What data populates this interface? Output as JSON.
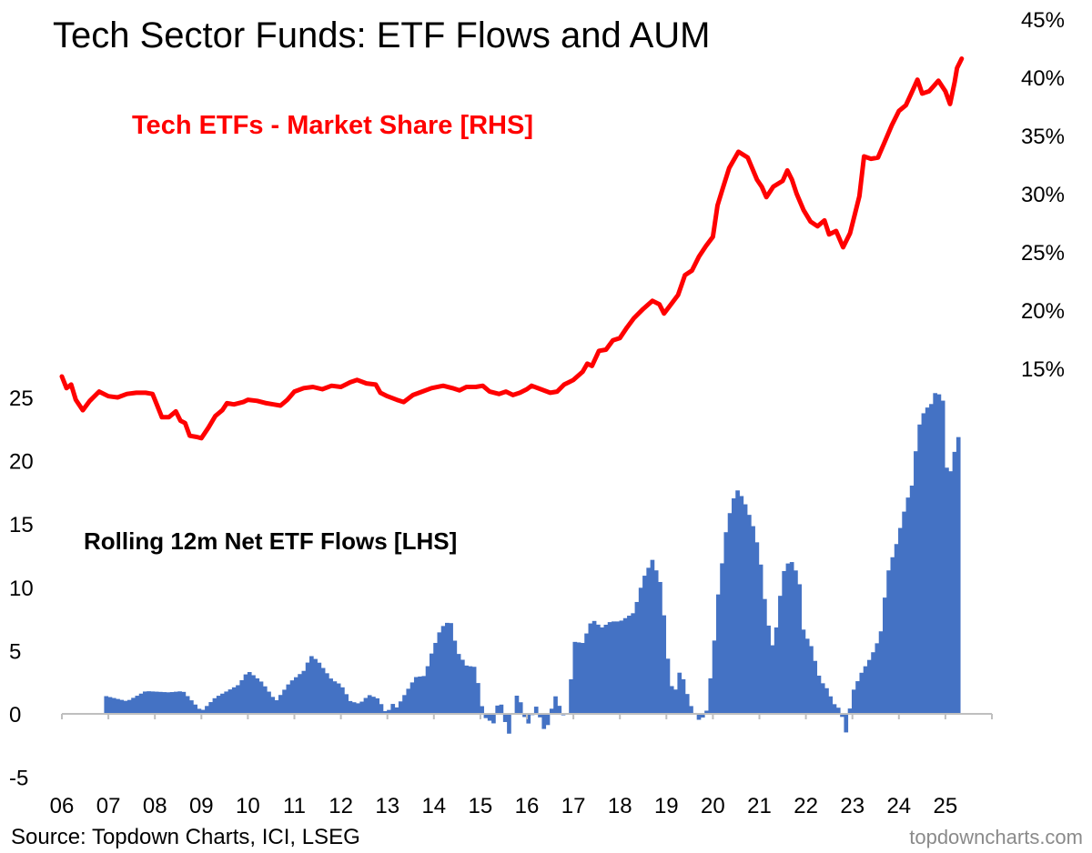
{
  "title": "Tech Sector Funds: ETF Flows and AUM",
  "source": "Source: Topdown Charts, ICI, LSEG",
  "brand": "topdowncharts.com",
  "chart_data": {
    "type": "bar+line",
    "x_tick_labels": [
      "06",
      "07",
      "08",
      "09",
      "10",
      "11",
      "12",
      "13",
      "14",
      "15",
      "16",
      "17",
      "18",
      "19",
      "20",
      "21",
      "22",
      "23",
      "24",
      "25"
    ],
    "left_axis": {
      "ticks": [
        "25",
        "20",
        "15",
        "10",
        "5",
        "0",
        "-5"
      ],
      "range": [
        -5,
        27
      ]
    },
    "right_axis": {
      "ticks": [
        "45%",
        "40%",
        "35%",
        "30%",
        "25%",
        "20%",
        "15%"
      ],
      "range_pct": [
        10,
        45
      ]
    },
    "grid": false,
    "series": [
      {
        "name": "Tech ETFs - Market Share [RHS]",
        "type": "line",
        "axis": "right",
        "color": "#ff0000",
        "points": [
          [
            2006.0,
            14.3
          ],
          [
            2006.1,
            13.3
          ],
          [
            2006.2,
            13.6
          ],
          [
            2006.3,
            12.3
          ],
          [
            2006.45,
            11.4
          ],
          [
            2006.6,
            12.2
          ],
          [
            2006.8,
            13.0
          ],
          [
            2007.0,
            12.6
          ],
          [
            2007.2,
            12.5
          ],
          [
            2007.4,
            12.8
          ],
          [
            2007.6,
            12.9
          ],
          [
            2007.8,
            12.9
          ],
          [
            2007.95,
            12.8
          ],
          [
            2008.05,
            11.8
          ],
          [
            2008.15,
            10.8
          ],
          [
            2008.3,
            10.8
          ],
          [
            2008.45,
            11.3
          ],
          [
            2008.55,
            10.5
          ],
          [
            2008.65,
            10.3
          ],
          [
            2008.75,
            9.2
          ],
          [
            2008.9,
            9.1
          ],
          [
            2009.0,
            9.0
          ],
          [
            2009.15,
            9.9
          ],
          [
            2009.3,
            10.9
          ],
          [
            2009.45,
            11.4
          ],
          [
            2009.55,
            12.0
          ],
          [
            2009.7,
            11.9
          ],
          [
            2009.9,
            12.1
          ],
          [
            2010.0,
            12.3
          ],
          [
            2010.2,
            12.2
          ],
          [
            2010.4,
            12.0
          ],
          [
            2010.55,
            11.9
          ],
          [
            2010.7,
            11.8
          ],
          [
            2010.85,
            12.3
          ],
          [
            2011.0,
            13.0
          ],
          [
            2011.2,
            13.3
          ],
          [
            2011.4,
            13.4
          ],
          [
            2011.6,
            13.2
          ],
          [
            2011.8,
            13.5
          ],
          [
            2012.0,
            13.4
          ],
          [
            2012.2,
            13.8
          ],
          [
            2012.35,
            14.0
          ],
          [
            2012.55,
            13.7
          ],
          [
            2012.75,
            13.6
          ],
          [
            2012.85,
            12.9
          ],
          [
            2013.0,
            12.6
          ],
          [
            2013.2,
            12.3
          ],
          [
            2013.35,
            12.1
          ],
          [
            2013.55,
            12.7
          ],
          [
            2013.75,
            13.0
          ],
          [
            2013.95,
            13.3
          ],
          [
            2014.2,
            13.5
          ],
          [
            2014.4,
            13.3
          ],
          [
            2014.55,
            13.1
          ],
          [
            2014.7,
            13.4
          ],
          [
            2014.9,
            13.4
          ],
          [
            2015.05,
            13.5
          ],
          [
            2015.2,
            13.0
          ],
          [
            2015.4,
            12.8
          ],
          [
            2015.55,
            13.0
          ],
          [
            2015.7,
            12.7
          ],
          [
            2015.85,
            12.9
          ],
          [
            2016.0,
            13.2
          ],
          [
            2016.1,
            13.5
          ],
          [
            2016.3,
            13.2
          ],
          [
            2016.5,
            12.9
          ],
          [
            2016.65,
            13.0
          ],
          [
            2016.8,
            13.6
          ],
          [
            2016.9,
            13.8
          ],
          [
            2017.0,
            14.0
          ],
          [
            2017.2,
            14.7
          ],
          [
            2017.3,
            15.4
          ],
          [
            2017.4,
            15.2
          ],
          [
            2017.55,
            16.5
          ],
          [
            2017.7,
            16.6
          ],
          [
            2017.85,
            17.4
          ],
          [
            2018.0,
            17.6
          ],
          [
            2018.15,
            18.5
          ],
          [
            2018.3,
            19.3
          ],
          [
            2018.5,
            20.1
          ],
          [
            2018.7,
            20.8
          ],
          [
            2018.85,
            20.5
          ],
          [
            2018.95,
            19.7
          ],
          [
            2019.1,
            20.5
          ],
          [
            2019.25,
            21.3
          ],
          [
            2019.4,
            23.0
          ],
          [
            2019.55,
            23.4
          ],
          [
            2019.7,
            24.6
          ],
          [
            2019.85,
            25.5
          ],
          [
            2020.0,
            26.3
          ],
          [
            2020.1,
            29.0
          ],
          [
            2020.2,
            30.3
          ],
          [
            2020.35,
            32.2
          ],
          [
            2020.55,
            33.6
          ],
          [
            2020.75,
            33.1
          ],
          [
            2020.95,
            31.2
          ],
          [
            2021.05,
            30.6
          ],
          [
            2021.15,
            29.7
          ],
          [
            2021.3,
            30.6
          ],
          [
            2021.5,
            31.1
          ],
          [
            2021.6,
            32.0
          ],
          [
            2021.7,
            31.2
          ],
          [
            2021.8,
            30.0
          ],
          [
            2021.95,
            28.6
          ],
          [
            2022.1,
            27.6
          ],
          [
            2022.25,
            27.2
          ],
          [
            2022.4,
            27.7
          ],
          [
            2022.5,
            26.5
          ],
          [
            2022.65,
            26.8
          ],
          [
            2022.8,
            25.4
          ],
          [
            2022.95,
            26.6
          ],
          [
            2023.05,
            28.2
          ],
          [
            2023.15,
            29.8
          ],
          [
            2023.25,
            33.2
          ],
          [
            2023.4,
            33.0
          ],
          [
            2023.55,
            33.1
          ],
          [
            2023.7,
            34.5
          ],
          [
            2023.85,
            35.9
          ],
          [
            2024.0,
            37.1
          ],
          [
            2024.15,
            37.6
          ],
          [
            2024.3,
            38.9
          ],
          [
            2024.4,
            39.8
          ],
          [
            2024.5,
            38.6
          ],
          [
            2024.65,
            38.8
          ],
          [
            2024.85,
            39.7
          ],
          [
            2025.0,
            38.8
          ],
          [
            2025.1,
            37.7
          ],
          [
            2025.2,
            39.6
          ],
          [
            2025.25,
            40.8
          ],
          [
            2025.35,
            41.6
          ]
        ]
      },
      {
        "name": "Rolling 12m Net ETF Flows [LHS]",
        "type": "bar",
        "axis": "left",
        "color": "#4472c4",
        "bar_step": 0.0833,
        "points": [
          [
            2006.95,
            1.4
          ],
          [
            2007.4,
            1.0
          ],
          [
            2007.8,
            1.8
          ],
          [
            2008.3,
            1.7
          ],
          [
            2008.6,
            1.8
          ],
          [
            2008.8,
            1.0
          ],
          [
            2009.0,
            0.2
          ],
          [
            2009.3,
            1.3
          ],
          [
            2009.8,
            2.3
          ],
          [
            2010.0,
            3.4
          ],
          [
            2010.3,
            2.5
          ],
          [
            2010.6,
            1.0
          ],
          [
            2010.9,
            2.5
          ],
          [
            2011.2,
            3.4
          ],
          [
            2011.35,
            4.6
          ],
          [
            2011.5,
            4.2
          ],
          [
            2011.8,
            2.7
          ],
          [
            2012.0,
            2.3
          ],
          [
            2012.2,
            1.0
          ],
          [
            2012.4,
            0.8
          ],
          [
            2012.6,
            1.5
          ],
          [
            2012.8,
            1.2
          ],
          [
            2012.95,
            0.2
          ],
          [
            2013.0,
            -0.8
          ],
          [
            2013.05,
            1.0
          ],
          [
            2013.2,
            0.5
          ],
          [
            2013.4,
            1.7
          ],
          [
            2013.6,
            2.9
          ],
          [
            2013.8,
            3.0
          ],
          [
            2013.95,
            4.8
          ],
          [
            2014.15,
            6.8
          ],
          [
            2014.35,
            7.4
          ],
          [
            2014.5,
            4.9
          ],
          [
            2014.7,
            3.8
          ],
          [
            2014.9,
            3.7
          ],
          [
            2015.0,
            1.0
          ],
          [
            2015.1,
            -0.3
          ],
          [
            2015.3,
            -0.8
          ],
          [
            2015.4,
            1.5
          ],
          [
            2015.6,
            -1.8
          ],
          [
            2015.8,
            1.8
          ],
          [
            2016.0,
            -1.0
          ],
          [
            2016.2,
            0.6
          ],
          [
            2016.4,
            -1.6
          ],
          [
            2016.6,
            1.5
          ],
          [
            2016.8,
            -0.3
          ],
          [
            2016.9,
            0.2
          ],
          [
            2017.0,
            5.7
          ],
          [
            2017.2,
            5.6
          ],
          [
            2017.4,
            7.5
          ],
          [
            2017.6,
            6.8
          ],
          [
            2017.8,
            7.3
          ],
          [
            2018.0,
            7.3
          ],
          [
            2018.3,
            8.0
          ],
          [
            2018.5,
            10.7
          ],
          [
            2018.7,
            12.2
          ],
          [
            2018.9,
            10.0
          ],
          [
            2019.0,
            5.1
          ],
          [
            2019.15,
            1.2
          ],
          [
            2019.3,
            3.6
          ],
          [
            2019.5,
            0.8
          ],
          [
            2019.7,
            -0.5
          ],
          [
            2019.85,
            -0.1
          ],
          [
            2020.0,
            4.5
          ],
          [
            2020.1,
            9.1
          ],
          [
            2020.3,
            15.0
          ],
          [
            2020.5,
            17.8
          ],
          [
            2020.65,
            17.0
          ],
          [
            2020.85,
            15.0
          ],
          [
            2021.0,
            12.7
          ],
          [
            2021.15,
            7.8
          ],
          [
            2021.3,
            5.0
          ],
          [
            2021.45,
            9.5
          ],
          [
            2021.55,
            11.8
          ],
          [
            2021.7,
            12.0
          ],
          [
            2021.85,
            10.7
          ],
          [
            2021.95,
            6.4
          ],
          [
            2022.1,
            5.5
          ],
          [
            2022.3,
            2.7
          ],
          [
            2022.45,
            2.0
          ],
          [
            2022.6,
            0.8
          ],
          [
            2022.75,
            0.3
          ],
          [
            2022.85,
            -1.7
          ],
          [
            2023.0,
            1.7
          ],
          [
            2023.2,
            3.3
          ],
          [
            2023.4,
            4.5
          ],
          [
            2023.6,
            6.2
          ],
          [
            2023.75,
            11.0
          ],
          [
            2023.95,
            13.5
          ],
          [
            2024.15,
            16.6
          ],
          [
            2024.3,
            18.3
          ],
          [
            2024.4,
            22.4
          ],
          [
            2024.55,
            24.0
          ],
          [
            2024.7,
            24.5
          ],
          [
            2024.8,
            25.6
          ],
          [
            2024.95,
            24.7
          ],
          [
            2025.05,
            17.8
          ],
          [
            2025.15,
            20.1
          ],
          [
            2025.3,
            22.2
          ]
        ]
      }
    ],
    "annotations": [
      {
        "text": "Tech ETFs - Market Share [RHS]",
        "color": "#ff0000"
      },
      {
        "text": "Rolling 12m Net ETF Flows [LHS]",
        "color": "#000000"
      }
    ]
  }
}
